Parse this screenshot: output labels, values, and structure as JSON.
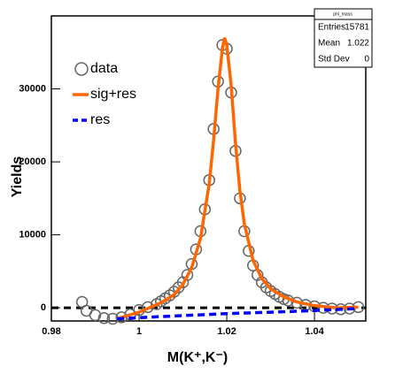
{
  "chart_data": {
    "type": "line",
    "xlabel": "M(K⁺,K⁻)",
    "ylabel": "Yields",
    "xlim": [
      0.98,
      1.0517
    ],
    "ylim": [
      -1800,
      40000
    ],
    "xticks": [
      0.98,
      1,
      1.02,
      1.04
    ],
    "yticks": [
      0,
      10000,
      20000,
      30000
    ],
    "hline": 0,
    "series": [
      {
        "name": "data",
        "style": "marker",
        "color": "#666666",
        "x": [
          0.987,
          0.988,
          0.99,
          0.992,
          0.994,
          0.996,
          0.998,
          1.0,
          1.002,
          1.004,
          1.005,
          1.006,
          1.007,
          1.008,
          1.009,
          1.01,
          1.011,
          1.012,
          1.013,
          1.014,
          1.015,
          1.016,
          1.017,
          1.018,
          1.019,
          1.02,
          1.021,
          1.022,
          1.023,
          1.024,
          1.025,
          1.026,
          1.027,
          1.028,
          1.029,
          1.03,
          1.031,
          1.032,
          1.033,
          1.034,
          1.036,
          1.038,
          1.04,
          1.042,
          1.044,
          1.046,
          1.048,
          1.05
        ],
        "values": [
          800,
          -400,
          -1000,
          -1400,
          -1500,
          -1300,
          -900,
          -300,
          100,
          500,
          900,
          1300,
          1700,
          2200,
          2800,
          3500,
          4500,
          6000,
          8000,
          10500,
          13500,
          17500,
          24500,
          31000,
          36000,
          35500,
          29500,
          21500,
          15000,
          10500,
          7800,
          5800,
          4500,
          3500,
          2800,
          2300,
          1900,
          1500,
          1200,
          1000,
          700,
          400,
          200,
          0,
          -100,
          -200,
          -100,
          100
        ]
      },
      {
        "name": "sig+res",
        "style": "line",
        "color": "#ff6600",
        "x": [
          0.995,
          1.0,
          1.005,
          1.008,
          1.01,
          1.012,
          1.014,
          1.016,
          1.017,
          1.018,
          1.019,
          1.0195,
          1.02,
          1.021,
          1.022,
          1.023,
          1.024,
          1.026,
          1.028,
          1.03,
          1.033,
          1.036,
          1.04,
          1.045,
          1.05
        ],
        "values": [
          -1500,
          -600,
          700,
          1800,
          3200,
          5500,
          9500,
          17000,
          23000,
          30000,
          35500,
          37000,
          36000,
          30500,
          22500,
          16000,
          11500,
          6500,
          4000,
          2600,
          1500,
          800,
          300,
          0,
          100
        ]
      },
      {
        "name": "res",
        "style": "dashed",
        "color": "#0000ff",
        "x": [
          0.995,
          1.005,
          1.02,
          1.035,
          1.05
        ],
        "values": [
          -1500,
          -1200,
          -800,
          -500,
          -100
        ]
      }
    ],
    "stats": {
      "title": "phi_mass",
      "rows": [
        [
          "Entries",
          "15781"
        ],
        [
          "Mean",
          "1.022"
        ],
        [
          "Std Dev",
          "0"
        ]
      ]
    }
  }
}
